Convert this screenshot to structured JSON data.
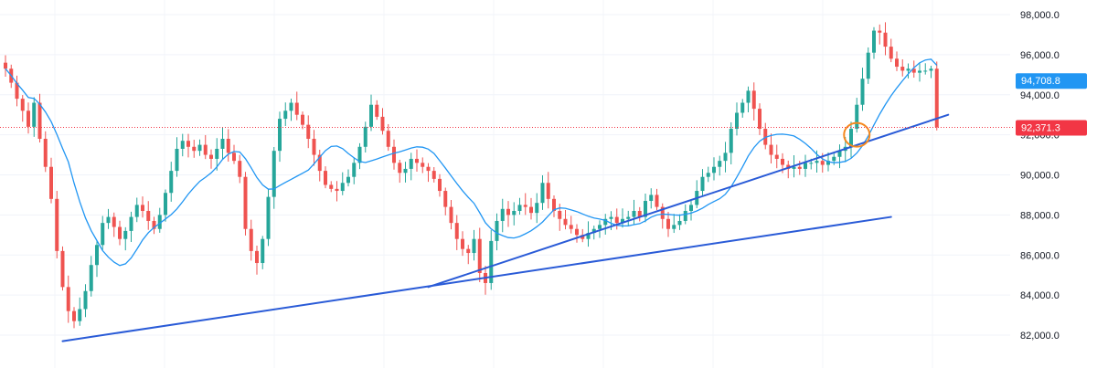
{
  "chart_data": {
    "type": "candlestick",
    "y_axis": {
      "position": "right",
      "range": [
        81000,
        98500
      ],
      "ticks": [
        {
          "value": 98000,
          "label": "98,000.0"
        },
        {
          "value": 96000,
          "label": "96,000.0"
        },
        {
          "value": 94000,
          "label": "94,000.0"
        },
        {
          "value": 92000,
          "label": "92,000.0"
        },
        {
          "value": 90000,
          "label": "90,000.0"
        },
        {
          "value": 88000,
          "label": "88,000.0"
        },
        {
          "value": 86000,
          "label": "86,000.0"
        },
        {
          "value": 84000,
          "label": "84,000.0"
        },
        {
          "value": 82000,
          "label": "82,000.0"
        }
      ]
    },
    "grid": true,
    "price_badges": [
      {
        "name": "moving-average-value",
        "value": 94708.8,
        "label": "94,708.8",
        "color": "#2196f3"
      },
      {
        "name": "last-price",
        "value": 92371.3,
        "label": "92,371.3",
        "color": "#f23645"
      }
    ],
    "colors": {
      "up": "#26a69a",
      "down": "#ef5350",
      "moving_average": "#2196f3",
      "trendline": "#2a5bd7",
      "highlight_circle": "#f5891f",
      "price_line": "#f23645"
    },
    "closes": [
      95300,
      94600,
      93800,
      93200,
      92400,
      93600,
      91800,
      90400,
      88800,
      86200,
      84400,
      83200,
      82700,
      83300,
      84200,
      85500,
      86500,
      87600,
      87900,
      87400,
      86800,
      87200,
      87900,
      88500,
      88200,
      87700,
      87300,
      88000,
      89100,
      90200,
      91300,
      91700,
      91400,
      91200,
      91500,
      91000,
      90800,
      91300,
      91800,
      91100,
      90700,
      89900,
      87300,
      86200,
      85600,
      86800,
      88900,
      91200,
      92800,
      93200,
      93600,
      93000,
      92500,
      91800,
      91000,
      90200,
      89500,
      89300,
      89200,
      89600,
      89900,
      90600,
      91400,
      92400,
      93500,
      92900,
      92200,
      91400,
      90600,
      90100,
      90300,
      90800,
      90600,
      90400,
      90200,
      89800,
      89200,
      88400,
      87600,
      86800,
      86300,
      86100,
      86800,
      85100,
      84600,
      86700,
      87700,
      88300,
      88000,
      88200,
      88500,
      88400,
      88100,
      88600,
      89600,
      88800,
      88200,
      87800,
      87500,
      87300,
      87000,
      86800,
      87100,
      87300,
      87500,
      87800,
      87900,
      87600,
      87800,
      87900,
      88200,
      87900,
      88700,
      89000,
      88400,
      87800,
      87300,
      87500,
      87700,
      88200,
      88500,
      89200,
      89900,
      90100,
      90400,
      90700,
      91100,
      92300,
      93100,
      93600,
      94200,
      93300,
      92300,
      91500,
      91000,
      90800,
      90500,
      90300,
      90400,
      90300,
      90600,
      90600,
      90700,
      90500,
      90700,
      90900,
      91200,
      91400,
      92300,
      93500,
      94800,
      96100,
      97200,
      97100,
      96400,
      95800,
      95400,
      95200,
      95300,
      95100,
      95200,
      95200,
      95300,
      92371.3
    ],
    "moving_average_period": 12,
    "trendlines": [
      {
        "start_index": 10,
        "start_price": 81700,
        "end_index": 155,
        "end_price": 87900
      },
      {
        "start_index": 74,
        "start_price": 84400,
        "end_index": 165,
        "end_price": 93000
      }
    ],
    "highlight_circle": {
      "index": 149,
      "price": 92000
    }
  }
}
